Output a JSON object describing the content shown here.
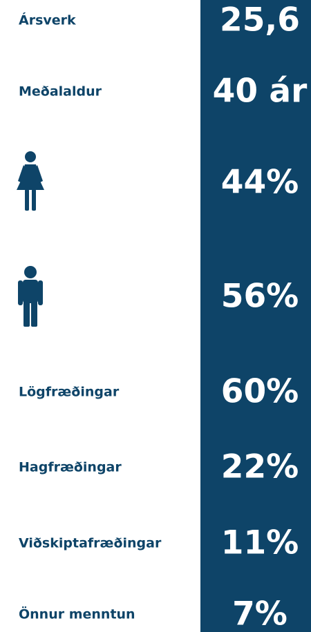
{
  "rows": [
    {
      "label": "Ársverk",
      "value": "25,6"
    },
    {
      "label": "Meðalaldur",
      "value": "40 ár"
    },
    {
      "value": "44%"
    },
    {
      "value": "56%"
    },
    {
      "label": "Lögfræðingar",
      "value": "60%"
    },
    {
      "label": "Hagfræðingar",
      "value": "22%"
    },
    {
      "label": "Viðskiptafræðingar",
      "value": "11%"
    },
    {
      "label": "Önnur menntun",
      "value": "7%"
    }
  ]
}
